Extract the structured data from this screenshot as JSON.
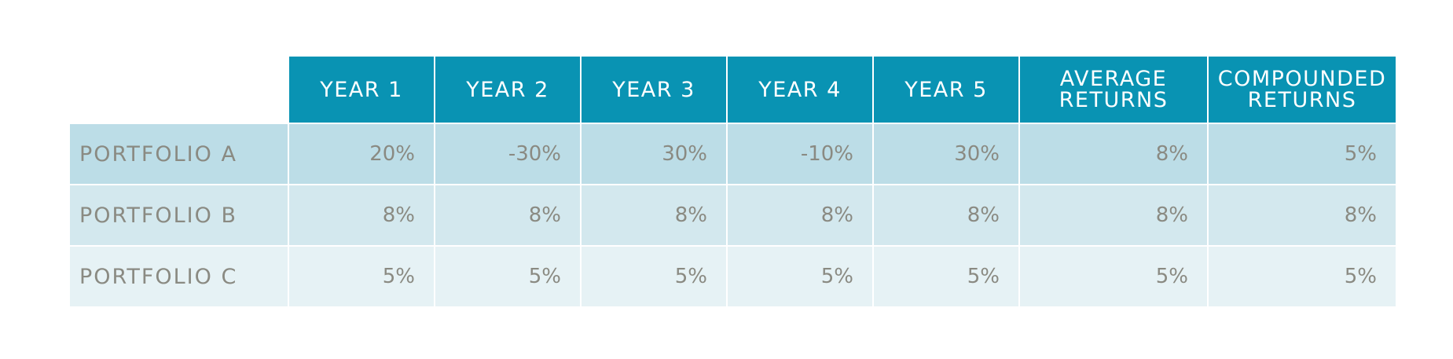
{
  "chart_data": {
    "type": "table",
    "columns": [
      [
        "YEAR 1"
      ],
      [
        "YEAR 2"
      ],
      [
        "YEAR 3"
      ],
      [
        "YEAR 4"
      ],
      [
        "YEAR 5"
      ],
      [
        "AVERAGE",
        "RETURNS"
      ],
      [
        "COMPOUNDED",
        "RETURNS"
      ]
    ],
    "rows": [
      {
        "label": "PORTFOLIO A",
        "values": [
          "20%",
          "-30%",
          "30%",
          "-10%",
          "30%",
          "8%",
          "5%"
        ]
      },
      {
        "label": "PORTFOLIO B",
        "values": [
          "8%",
          "8%",
          "8%",
          "8%",
          "8%",
          "8%",
          "8%"
        ]
      },
      {
        "label": "PORTFOLIO C",
        "values": [
          "5%",
          "5%",
          "5%",
          "5%",
          "5%",
          "5%",
          "5%"
        ]
      }
    ],
    "colors": {
      "header_bg": "#0993b3",
      "header_text": "#ffffff",
      "row_a_bg": "#bcdde7",
      "row_b_bg": "#d3e8ee",
      "row_c_bg": "#e6f2f5",
      "body_text": "#8a8a82"
    }
  }
}
